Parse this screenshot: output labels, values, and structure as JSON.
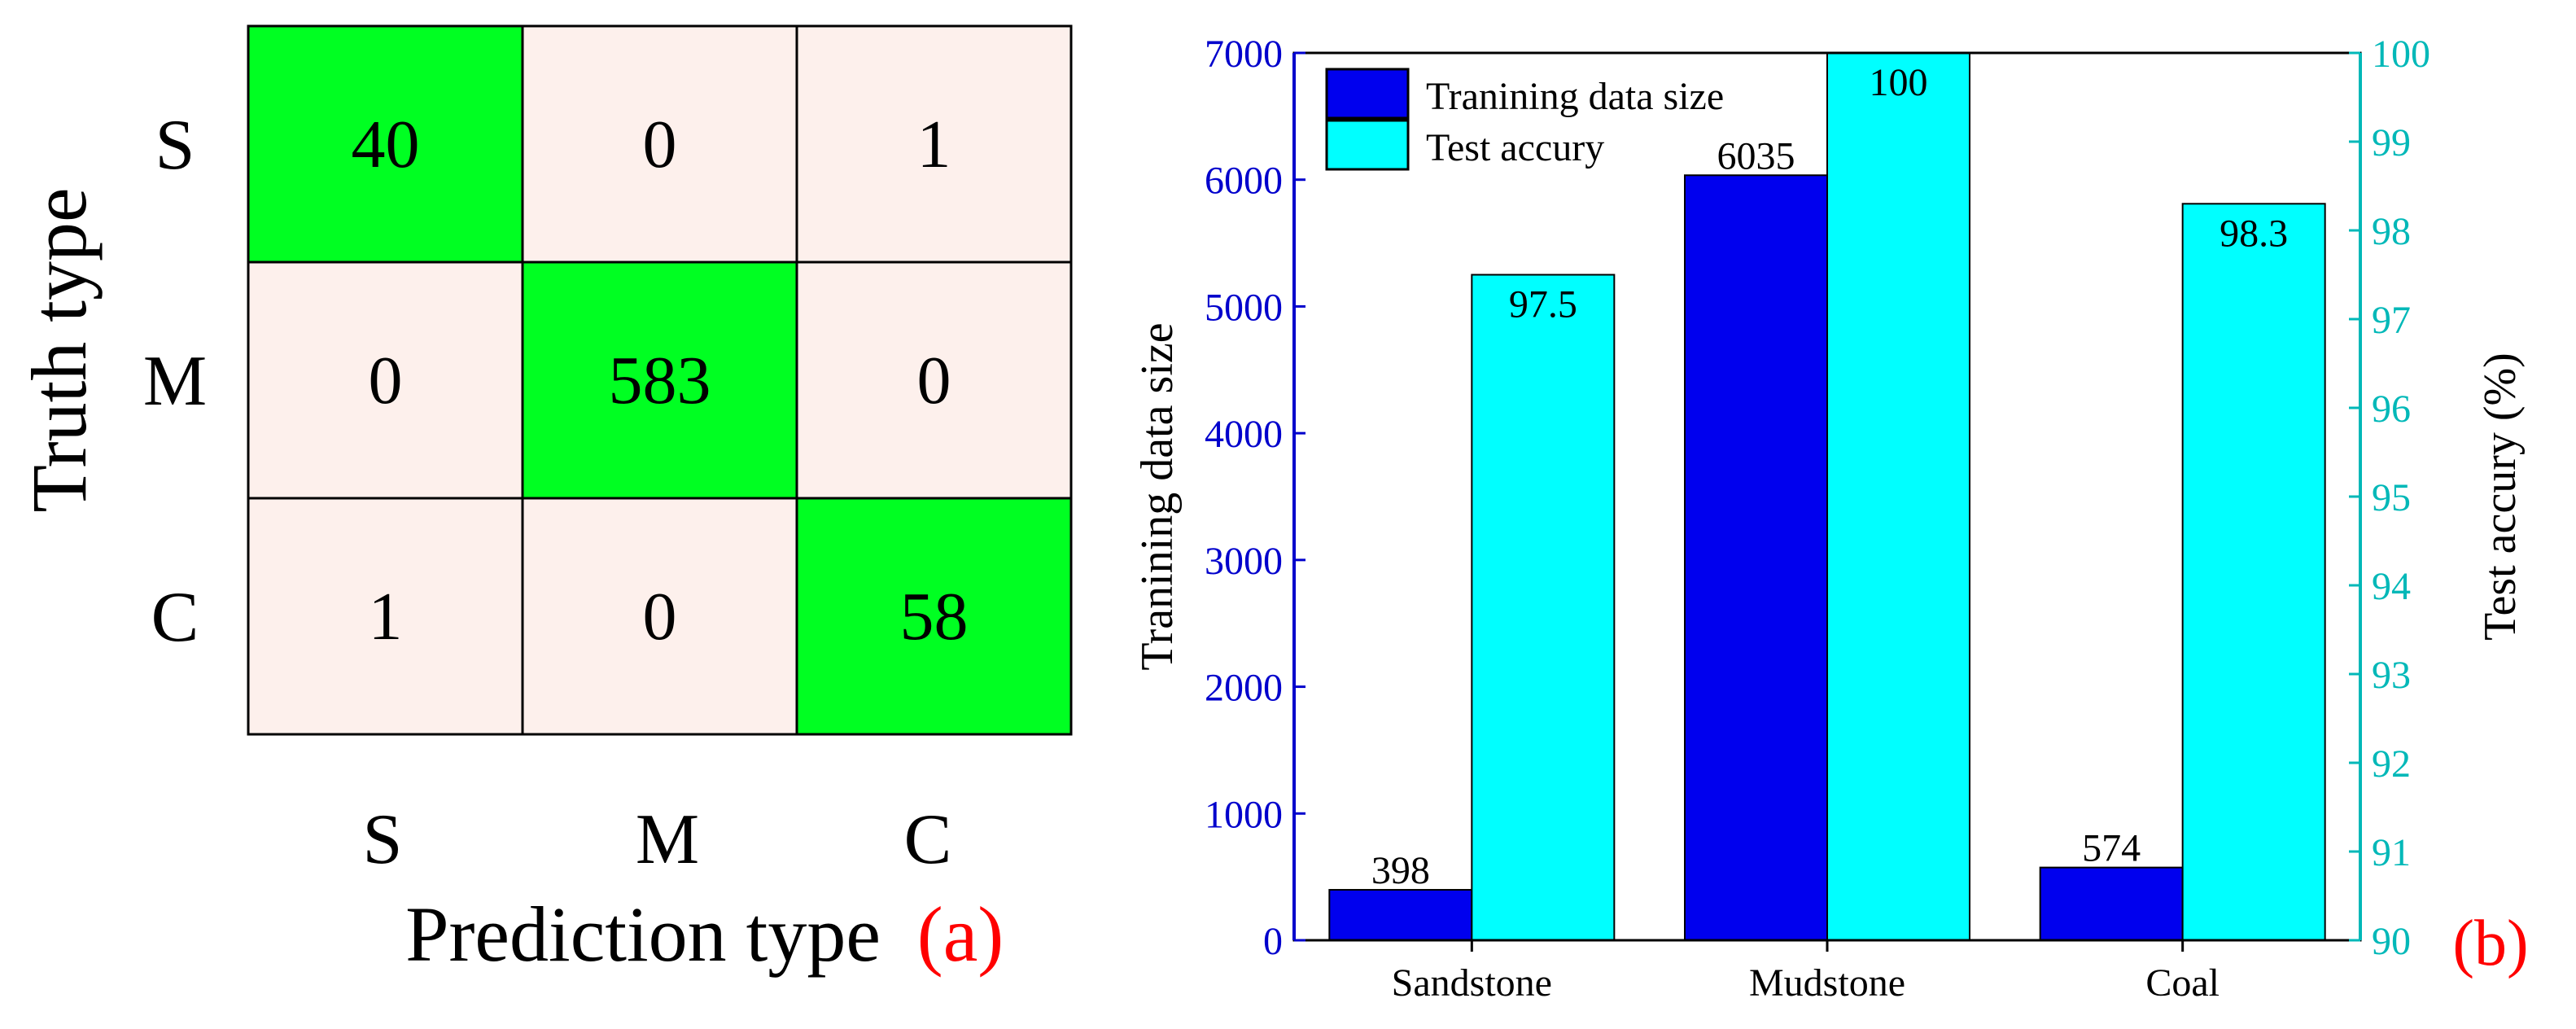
{
  "colors": {
    "diag": "#00ff22",
    "off": "#fdf0ec",
    "bar_train": "#0000ee",
    "bar_test": "#00ffff",
    "left_axis": "#0000cc",
    "right_axis": "#00b8b8",
    "panel_label": "#ff0000",
    "text": "#000000"
  },
  "chart_data": [
    {
      "type": "heatmap",
      "title": "",
      "xlabel": "Prediction type",
      "ylabel": "Truth type",
      "x_labels": [
        "S",
        "M",
        "C"
      ],
      "y_labels": [
        "S",
        "M",
        "C"
      ],
      "matrix": [
        [
          40,
          0,
          1
        ],
        [
          0,
          583,
          0
        ],
        [
          1,
          0,
          58
        ]
      ],
      "panel_label": "(a)"
    },
    {
      "type": "bar",
      "categories": [
        "Sandstone",
        "Mudstone",
        "Coal"
      ],
      "series": [
        {
          "name": "Tranining data size",
          "axis": "left",
          "values": [
            398,
            6035,
            574
          ],
          "labels": [
            "398",
            "6035",
            "574"
          ]
        },
        {
          "name": "Test accury",
          "axis": "right",
          "values": [
            97.5,
            100,
            98.3
          ],
          "labels": [
            "97.5",
            "100",
            "98.3"
          ]
        }
      ],
      "ylabel_left": "Tranining data size",
      "ylabel_right": "Test accury (%)",
      "ylim_left": [
        0,
        7000
      ],
      "ylim_right": [
        90,
        100
      ],
      "yticks_left": [
        "0",
        "1000",
        "2000",
        "3000",
        "4000",
        "5000",
        "6000",
        "7000"
      ],
      "yticks_right": [
        "90",
        "91",
        "92",
        "93",
        "94",
        "95",
        "96",
        "97",
        "98",
        "99",
        "100"
      ],
      "legend_placement": "top-left",
      "panel_label": "(b)"
    }
  ]
}
